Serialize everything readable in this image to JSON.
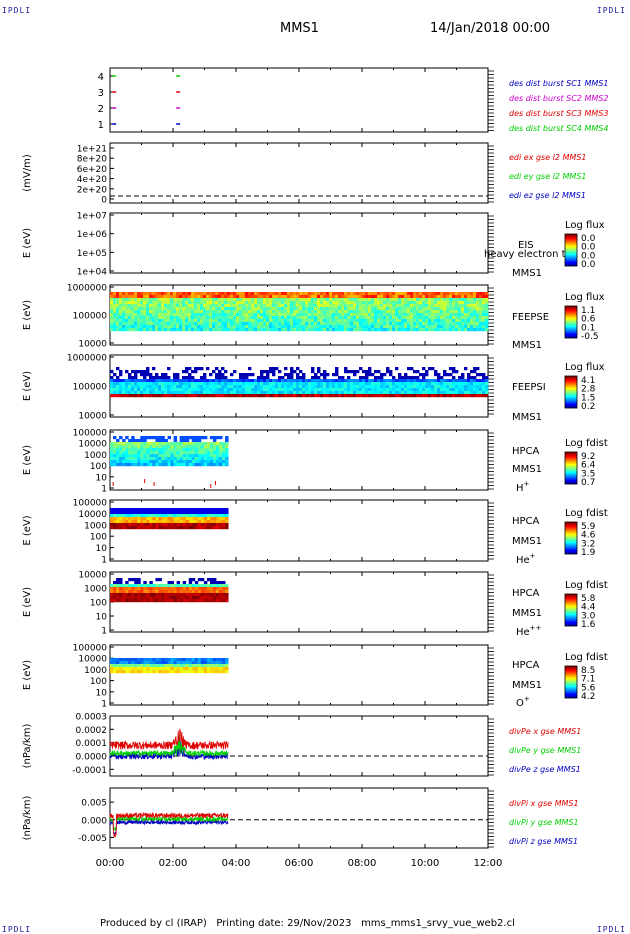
{
  "header": {
    "corner_left": "IPDLI",
    "corner_right": "IPDLI",
    "mission": "MMS1",
    "date": "14/Jan/2018 00:00",
    "footer_produced": "Produced by cl (IRAP)",
    "footer_date": "Printing date: 29/Nov/2023",
    "footer_file": "mms_mms1_srvy_vue_web2.cl",
    "bottom_left": "IPDLI",
    "bottom_right": "IPDLI"
  },
  "time_axis": {
    "ticks": [
      "00:00",
      "02:00",
      "04:00",
      "06:00",
      "08:00",
      "10:00",
      "12:00"
    ],
    "range_hours": [
      0,
      12
    ],
    "data_end_hours": 3.75
  },
  "colors": {
    "red": "#e00000",
    "green": "#00d000",
    "blue": "#0000c0",
    "magenta": "#d000d0"
  },
  "chart_data": [
    {
      "type": "scatter",
      "panel": "des-dist-burst",
      "yticks": [
        "1",
        "2",
        "3",
        "4"
      ],
      "ylabel": "",
      "legend": [
        {
          "label": "des dist burst SC1 MMS1",
          "color": "#0000c0"
        },
        {
          "label": "des dist burst SC2 MMS2",
          "color": "#d000d0"
        },
        {
          "label": "des dist burst SC3 MMS3",
          "color": "#e00000"
        },
        {
          "label": "des dist burst SC4 MMS4",
          "color": "#00d000"
        }
      ],
      "marks": [
        {
          "level": 4,
          "t": [
            0.07,
            2.1
          ],
          "color": "#00d000"
        },
        {
          "level": 3,
          "t": [
            0.07,
            2.1
          ],
          "color": "#e00000"
        },
        {
          "level": 2,
          "t": [
            0.07,
            2.1
          ],
          "color": "#d000d0"
        },
        {
          "level": 1,
          "t": [
            0.07,
            2.1
          ],
          "color": "#0000c0"
        }
      ]
    },
    {
      "type": "line",
      "panel": "edi-e",
      "ylabel": "(mV/m)",
      "yticks": [
        "1e+21",
        "8e+20",
        "6e+20",
        "4e+20",
        "2e+20",
        "0"
      ],
      "legend": [
        {
          "label": "edi ex gse l2 MMS1",
          "color": "#e00000"
        },
        {
          "label": "edi ey gse l2 MMS1",
          "color": "#00d000"
        },
        {
          "label": "edi ez gse l2 MMS1",
          "color": "#0000c0"
        }
      ]
    },
    {
      "type": "heatmap",
      "panel": "eis",
      "ylabel": "E (eV)",
      "yticks": [
        "1e+07",
        "1e+06",
        "1e+05",
        "1e+04"
      ],
      "instrument": "EIS",
      "overlay": "heavy electron to",
      "spacecraft": "MMS1",
      "colorbar_title": "Log flux",
      "colorbar_ticks": [
        "0.0",
        "0.0",
        "0.0",
        "0.0"
      ]
    },
    {
      "type": "heatmap",
      "panel": "feeps-e",
      "ylabel": "E (eV)",
      "yticks": [
        "1000000",
        "100000",
        "10000"
      ],
      "instrument": "FEEPSE",
      "spacecraft": "MMS1",
      "colorbar_title": "Log flux",
      "colorbar_ticks": [
        "1.1",
        "0.6",
        "0.1",
        "-0.5"
      ],
      "time_range_hours": [
        0,
        12
      ]
    },
    {
      "type": "heatmap",
      "panel": "feeps-i",
      "ylabel": "E (eV)",
      "yticks": [
        "1000000",
        "100000",
        "10000"
      ],
      "instrument": "FEEPSI",
      "spacecraft": "MMS1",
      "colorbar_title": "Log flux",
      "colorbar_ticks": [
        "4.1",
        "2.8",
        "1.5",
        "0.2"
      ],
      "time_range_hours": [
        0,
        12
      ]
    },
    {
      "type": "heatmap",
      "panel": "hpca-h",
      "ylabel": "E (eV)",
      "yticks": [
        "100000",
        "10000",
        "1000",
        "100",
        "10",
        "1"
      ],
      "instrument": "HPCA",
      "spacecraft": "MMS1",
      "species": "H",
      "species_sup": "+",
      "colorbar_title": "Log fdist",
      "colorbar_ticks": [
        "9.2",
        "6.4",
        "3.5",
        "0.7"
      ],
      "time_range_hours": [
        0,
        3.75
      ]
    },
    {
      "type": "heatmap",
      "panel": "hpca-he",
      "ylabel": "E (eV)",
      "yticks": [
        "100000",
        "10000",
        "1000",
        "100",
        "10",
        "1"
      ],
      "instrument": "HPCA",
      "spacecraft": "MMS1",
      "species": "He",
      "species_sup": "+",
      "colorbar_title": "Log fdist",
      "colorbar_ticks": [
        "5.9",
        "4.6",
        "3.2",
        "1.9"
      ],
      "time_range_hours": [
        0,
        3.75
      ]
    },
    {
      "type": "heatmap",
      "panel": "hpca-hepp",
      "ylabel": "E (eV)",
      "yticks": [
        "10000",
        "1000",
        "100",
        "10",
        "1"
      ],
      "instrument": "HPCA",
      "spacecraft": "MMS1",
      "species": "He",
      "species_sup": "++",
      "colorbar_title": "Log fdist",
      "colorbar_ticks": [
        "5.8",
        "4.4",
        "3.0",
        "1.6"
      ],
      "time_range_hours": [
        0,
        3.75
      ]
    },
    {
      "type": "heatmap",
      "panel": "hpca-o",
      "ylabel": "E (eV)",
      "yticks": [
        "100000",
        "10000",
        "1000",
        "100",
        "10",
        "1"
      ],
      "instrument": "HPCA",
      "spacecraft": "MMS1",
      "species": "O",
      "species_sup": "+",
      "colorbar_title": "Log fdist",
      "colorbar_ticks": [
        "8.5",
        "7.1",
        "5.6",
        "4.2"
      ],
      "time_range_hours": [
        0,
        3.75
      ]
    },
    {
      "type": "line",
      "panel": "divpe",
      "ylabel": "(nPa/km)",
      "yticks": [
        "0.0003",
        "0.0002",
        "0.0001",
        "0.0000",
        "-0.0001"
      ],
      "yrange": [
        -0.00015,
        0.0003
      ],
      "legend": [
        {
          "label": "divPe x gse MMS1",
          "color": "#e00000"
        },
        {
          "label": "divPe y gse MMS1",
          "color": "#00d000"
        },
        {
          "label": "divPe z gse MMS1",
          "color": "#0000c0"
        }
      ],
      "time_range_hours": [
        0,
        3.75
      ]
    },
    {
      "type": "line",
      "panel": "divpi",
      "ylabel": "(nPa/km)",
      "yticks": [
        "0.005",
        "0.000",
        "-0.005"
      ],
      "yrange": [
        -0.008,
        0.009
      ],
      "legend": [
        {
          "label": "divPi x gse MMS1",
          "color": "#e00000"
        },
        {
          "label": "divPi y gse MMS1",
          "color": "#00d000"
        },
        {
          "label": "divPi z gse MMS1",
          "color": "#0000c0"
        }
      ],
      "time_range_hours": [
        0,
        3.75
      ]
    }
  ]
}
